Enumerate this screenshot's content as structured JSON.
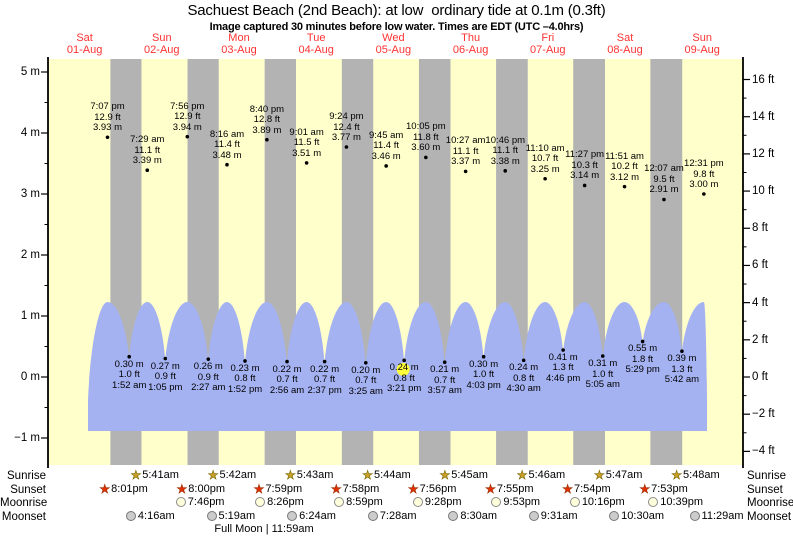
{
  "title": "Sachuest Beach (2nd Beach): at low  ordinary tide at 0.1m (0.3ft)",
  "subtitle": "Image captured 30 minutes before low water. Times are EDT (UTC –4.0hrs)",
  "colors": {
    "day_bg": "#ffffcc",
    "night_bg": "#b3b3b3",
    "water": "#a5b2f2",
    "date_red": "#ff3333",
    "highlight_yellow": "#ffff3c",
    "sunrise_star": "#c9a227",
    "sunrise_star_stroke": "#7a6600",
    "sunset_star": "#e23000",
    "sunset_star_stroke": "#9b2e00",
    "moonrise_fill": "#ffffdc",
    "moonrise_stroke": "#8a8a8a",
    "moonset_fill": "#cccccc",
    "moonset_stroke": "#777777",
    "axis": "#000000"
  },
  "chart_data": {
    "type": "area",
    "title": "Sachuest Beach (2nd Beach): at low  ordinary tide at 0.1m (0.3ft)",
    "x_axis": {
      "days": [
        {
          "name": "Sat",
          "date": "01-Aug"
        },
        {
          "name": "Sun",
          "date": "02-Aug"
        },
        {
          "name": "Mon",
          "date": "03-Aug"
        },
        {
          "name": "Tue",
          "date": "04-Aug"
        },
        {
          "name": "Wed",
          "date": "05-Aug"
        },
        {
          "name": "Thu",
          "date": "06-Aug"
        },
        {
          "name": "Fri",
          "date": "07-Aug"
        },
        {
          "name": "Sat",
          "date": "08-Aug"
        },
        {
          "name": "Sun",
          "date": "09-Aug"
        }
      ]
    },
    "y_axis_left": {
      "unit": "m",
      "ticks": [
        5,
        4,
        3,
        2,
        1,
        0,
        -1
      ]
    },
    "y_axis_right": {
      "unit": "ft",
      "ticks": [
        16,
        14,
        12,
        10,
        8,
        6,
        4,
        2,
        0,
        -2,
        -4
      ]
    },
    "high_tides": [
      {
        "day": 1,
        "time": "7:07 pm",
        "ft": "12.9 ft",
        "m": "3.93 m",
        "value_m": 3.93
      },
      {
        "day": 2,
        "time": "7:29 am",
        "ft": "11.1 ft",
        "m": "3.39 m",
        "value_m": 3.39
      },
      {
        "day": 2,
        "time": "7:56 pm",
        "ft": "12.9 ft",
        "m": "3.94 m",
        "value_m": 3.94
      },
      {
        "day": 3,
        "time": "8:16 am",
        "ft": "11.4 ft",
        "m": "3.48 m",
        "value_m": 3.48
      },
      {
        "day": 3,
        "time": "8:40 pm",
        "ft": "12.8 ft",
        "m": "3.89 m",
        "value_m": 3.89
      },
      {
        "day": 4,
        "time": "9:01 am",
        "ft": "11.5 ft",
        "m": "3.51 m",
        "value_m": 3.51
      },
      {
        "day": 4,
        "time": "9:24 pm",
        "ft": "12.4 ft",
        "m": "3.77 m",
        "value_m": 3.77
      },
      {
        "day": 5,
        "time": "9:45 am",
        "ft": "11.4 ft",
        "m": "3.46 m",
        "value_m": 3.46
      },
      {
        "day": 5,
        "time": "10:05 pm",
        "ft": "11.8 ft",
        "m": "3.60 m",
        "value_m": 3.6
      },
      {
        "day": 6,
        "time": "10:27 am",
        "ft": "11.1 ft",
        "m": "3.37 m",
        "value_m": 3.37
      },
      {
        "day": 6,
        "time": "10:46 pm",
        "ft": "11.1 ft",
        "m": "3.38 m",
        "value_m": 3.38
      },
      {
        "day": 7,
        "time": "11:10 am",
        "ft": "10.7 ft",
        "m": "3.25 m",
        "value_m": 3.25
      },
      {
        "day": 7,
        "time": "11:27 pm",
        "ft": "10.3 ft",
        "m": "3.14 m",
        "value_m": 3.14
      },
      {
        "day": 8,
        "time": "11:51 am",
        "ft": "10.2 ft",
        "m": "3.12 m",
        "value_m": 3.12
      },
      {
        "day": 9,
        "time": "12:07 am",
        "ft": "9.5 ft",
        "m": "2.91 m",
        "value_m": 2.91
      },
      {
        "day": 9,
        "time": "12:31 pm",
        "ft": "9.8 ft",
        "m": "3.00 m",
        "value_m": 3.0
      }
    ],
    "low_tides": [
      {
        "day": 2,
        "time": "1:52 am",
        "m": "0.30 m",
        "ft": "1.0 ft",
        "value_m": 0.3
      },
      {
        "day": 2,
        "time": "1:05 pm",
        "m": "0.27 m",
        "ft": "0.9 ft",
        "value_m": 0.27
      },
      {
        "day": 3,
        "time": "2:27 am",
        "m": "0.26 m",
        "ft": "0.9 ft",
        "value_m": 0.26
      },
      {
        "day": 3,
        "time": "1:52 pm",
        "m": "0.23 m",
        "ft": "0.8 ft",
        "value_m": 0.23
      },
      {
        "day": 4,
        "time": "2:56 am",
        "m": "0.22 m",
        "ft": "0.7 ft",
        "value_m": 0.22
      },
      {
        "day": 4,
        "time": "2:37 pm",
        "m": "0.22 m",
        "ft": "0.7 ft",
        "value_m": 0.22
      },
      {
        "day": 5,
        "time": "3:25 am",
        "m": "0.20 m",
        "ft": "0.7 ft",
        "value_m": 0.2
      },
      {
        "day": 5,
        "time": "3:21 pm",
        "m": "0.24 m",
        "ft": "0.8 ft",
        "value_m": 0.24,
        "highlighted": true
      },
      {
        "day": 6,
        "time": "3:57 am",
        "m": "0.21 m",
        "ft": "0.7 ft",
        "value_m": 0.21
      },
      {
        "day": 6,
        "time": "4:03 pm",
        "m": "0.30 m",
        "ft": "1.0 ft",
        "value_m": 0.3
      },
      {
        "day": 7,
        "time": "4:30 am",
        "m": "0.24 m",
        "ft": "0.8 ft",
        "value_m": 0.24
      },
      {
        "day": 7,
        "time": "4:46 pm",
        "m": "0.41 m",
        "ft": "1.3 ft",
        "value_m": 0.41
      },
      {
        "day": 8,
        "time": "5:05 am",
        "m": "0.31 m",
        "ft": "1.0 ft",
        "value_m": 0.31
      },
      {
        "day": 8,
        "time": "5:29 pm",
        "m": "0.55 m",
        "ft": "1.8 ft",
        "value_m": 0.55
      },
      {
        "day": 9,
        "time": "5:42 am",
        "m": "0.39 m",
        "ft": "1.3 ft",
        "value_m": 0.39
      }
    ]
  },
  "astro": {
    "rows": [
      {
        "id": "sunrise",
        "label": "Sunrise",
        "icon": "sunrise-star-icon",
        "entries": [
          {
            "day": 2,
            "time": "5:41am"
          },
          {
            "day": 3,
            "time": "5:42am"
          },
          {
            "day": 4,
            "time": "5:43am"
          },
          {
            "day": 5,
            "time": "5:44am"
          },
          {
            "day": 6,
            "time": "5:45am"
          },
          {
            "day": 7,
            "time": "5:46am"
          },
          {
            "day": 8,
            "time": "5:47am"
          },
          {
            "day": 9,
            "time": "5:48am"
          }
        ]
      },
      {
        "id": "sunset",
        "label": "Sunset",
        "icon": "sunset-star-icon",
        "entries": [
          {
            "day": 1,
            "time": "8:01pm"
          },
          {
            "day": 2,
            "time": "8:00pm"
          },
          {
            "day": 3,
            "time": "7:59pm"
          },
          {
            "day": 4,
            "time": "7:58pm"
          },
          {
            "day": 5,
            "time": "7:56pm"
          },
          {
            "day": 6,
            "time": "7:55pm"
          },
          {
            "day": 7,
            "time": "7:54pm"
          },
          {
            "day": 8,
            "time": "7:53pm"
          }
        ]
      },
      {
        "id": "moonrise",
        "label": "Moonrise",
        "icon": "moonrise-circle-icon",
        "entries": [
          {
            "day": 2,
            "time": "7:46pm"
          },
          {
            "day": 3,
            "time": "8:26pm"
          },
          {
            "day": 4,
            "time": "8:59pm"
          },
          {
            "day": 5,
            "time": "9:28pm"
          },
          {
            "day": 6,
            "time": "9:53pm"
          },
          {
            "day": 7,
            "time": "10:16pm"
          },
          {
            "day": 8,
            "time": "10:39pm"
          }
        ]
      },
      {
        "id": "moonset",
        "label": "Moonset",
        "icon": "moonset-circle-icon",
        "entries": [
          {
            "day": 2,
            "time": "4:16am"
          },
          {
            "day": 3,
            "time": "5:19am"
          },
          {
            "day": 4,
            "time": "6:24am"
          },
          {
            "day": 5,
            "time": "7:28am"
          },
          {
            "day": 6,
            "time": "8:30am"
          },
          {
            "day": 7,
            "time": "9:31am"
          },
          {
            "day": 8,
            "time": "10:30am"
          },
          {
            "day": 9,
            "time": "11:29am"
          }
        ]
      }
    ],
    "note": "Full Moon | 11:59am"
  }
}
